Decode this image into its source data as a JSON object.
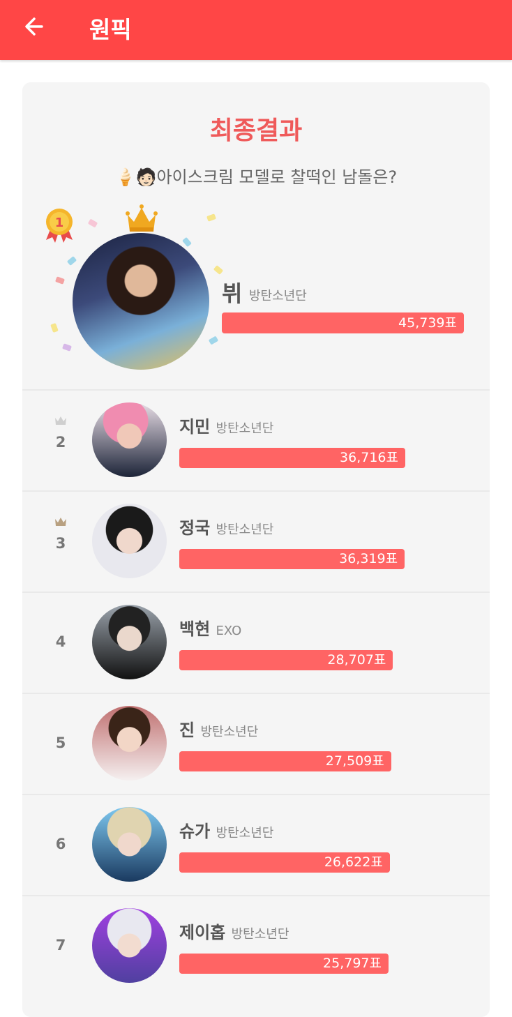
{
  "appbar": {
    "title": "원픽",
    "back_icon": "arrow-left-icon",
    "color": "#ff4646"
  },
  "result": {
    "heading": "최종결과",
    "question": "🍦🧑🏻아이스크림 모델로 찰떡인 남돌은?",
    "bar_color": "#ff6464",
    "winner": {
      "rank": "1",
      "name": "뷔",
      "group": "방탄소년단",
      "votes": 45739,
      "votes_label": "45,739표"
    },
    "items": [
      {
        "rank": "2",
        "name": "지민",
        "group": "방탄소년단",
        "votes": 36716,
        "votes_label": "36,716표",
        "crown": "silver"
      },
      {
        "rank": "3",
        "name": "정국",
        "group": "방탄소년단",
        "votes": 36319,
        "votes_label": "36,319표",
        "crown": "bronze"
      },
      {
        "rank": "4",
        "name": "백현",
        "group": "EXO",
        "votes": 28707,
        "votes_label": "28,707표"
      },
      {
        "rank": "5",
        "name": "진",
        "group": "방탄소년단",
        "votes": 27509,
        "votes_label": "27,509표"
      },
      {
        "rank": "6",
        "name": "슈가",
        "group": "방탄소년단",
        "votes": 26622,
        "votes_label": "26,622표"
      },
      {
        "rank": "7",
        "name": "제이홉",
        "group": "방탄소년단",
        "votes": 25797,
        "votes_label": "25,797표"
      }
    ]
  }
}
